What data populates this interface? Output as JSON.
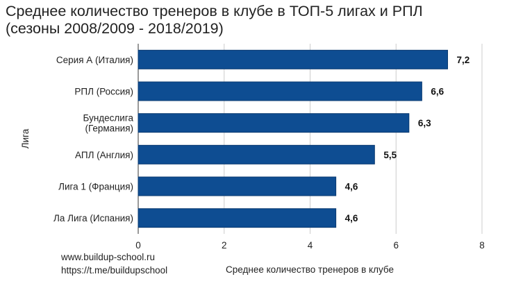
{
  "chart_data": {
    "type": "bar",
    "orientation": "horizontal",
    "title": [
      "Среднее количество тренеров в клубе в ТОП-5 лигах и РПЛ",
      "(сезоны 2008/2009 - 2018/2019)"
    ],
    "categories": [
      [
        "Серия А (Италия)"
      ],
      [
        "РПЛ (Россия)"
      ],
      [
        "Бундеслига",
        "(Германия)"
      ],
      [
        "АПЛ (Англия)"
      ],
      [
        "Лига 1 (Франция)"
      ],
      [
        "Ла Лига (Испания)"
      ]
    ],
    "values": [
      7.2,
      6.6,
      6.3,
      5.5,
      4.6,
      4.6
    ],
    "data_labels": [
      "7,2",
      "6,6",
      "6,3",
      "5,5",
      "4,6",
      "4,6"
    ],
    "xlabel": "Среднее количество тренеров в клубе",
    "ylabel": "Лига",
    "xlim": [
      0,
      8
    ],
    "xticks": [
      0,
      2,
      4,
      6,
      8
    ],
    "xtick_labels": [
      "0",
      "2",
      "4",
      "6",
      "8"
    ],
    "grid": "vertical",
    "legend": "none",
    "bar_color": "#0e4d92",
    "bar_edge_color": "#0a3a70"
  },
  "footer": {
    "website": "www.buildup-school.ru",
    "telegram": "https://t.me/buildupschool"
  }
}
